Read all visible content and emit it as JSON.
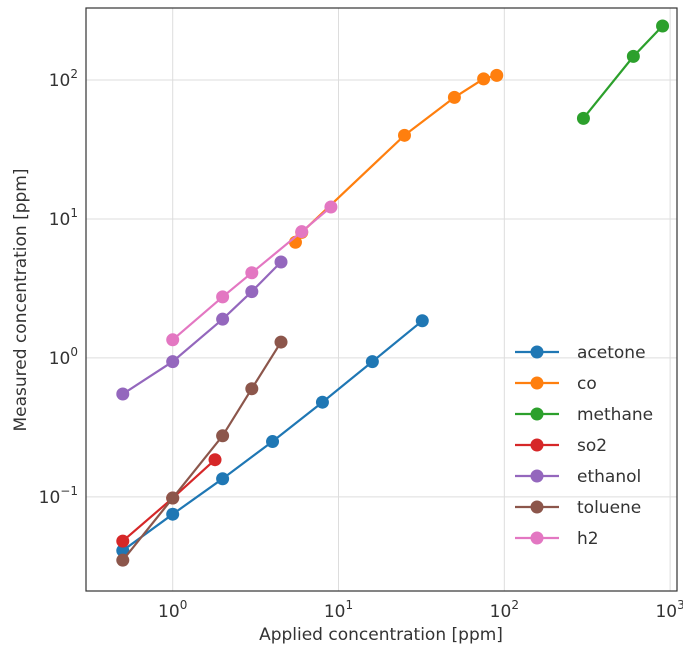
{
  "chart_data": {
    "type": "line",
    "title": "",
    "xlabel": "Applied concentration [ppm]",
    "ylabel": "Measured concentration [ppm]",
    "xscale": "log",
    "yscale": "log",
    "xlim": [
      0.3,
      1100
    ],
    "ylim": [
      0.021,
      330
    ],
    "grid": true,
    "legend_position": "lower-right",
    "x_ticks": [
      {
        "value": 1,
        "label": "10^0"
      },
      {
        "value": 10,
        "label": "10^1"
      },
      {
        "value": 100,
        "label": "10^2"
      },
      {
        "value": 1000,
        "label": "10^3"
      }
    ],
    "y_ticks": [
      {
        "value": 0.1,
        "label": "10^−1"
      },
      {
        "value": 1,
        "label": "10^0"
      },
      {
        "value": 10,
        "label": "10^1"
      },
      {
        "value": 100,
        "label": "10^2"
      }
    ],
    "series": [
      {
        "name": "acetone",
        "color": "#1f77b4",
        "x": [
          0.5,
          1,
          2,
          4,
          8,
          16,
          32
        ],
        "y": [
          0.041,
          0.075,
          0.135,
          0.25,
          0.48,
          0.94,
          1.85
        ]
      },
      {
        "name": "co",
        "color": "#ff7f0e",
        "x": [
          5.5,
          6,
          25,
          50,
          75,
          90
        ],
        "y": [
          6.8,
          8.0,
          40,
          75,
          102,
          108
        ]
      },
      {
        "name": "methane",
        "color": "#2ca02c",
        "x": [
          300,
          600,
          900
        ],
        "y": [
          53,
          148,
          245
        ]
      },
      {
        "name": "so2",
        "color": "#d62728",
        "x": [
          0.5,
          1,
          1.8
        ],
        "y": [
          0.048,
          0.098,
          0.185
        ]
      },
      {
        "name": "ethanol",
        "color": "#9467bd",
        "x": [
          0.5,
          1,
          2,
          3,
          4.5
        ],
        "y": [
          0.55,
          0.94,
          1.9,
          3.0,
          4.9
        ]
      },
      {
        "name": "toluene",
        "color": "#8c564b",
        "x": [
          0.5,
          1,
          2,
          3,
          4.5
        ],
        "y": [
          0.035,
          0.098,
          0.275,
          0.6,
          1.3
        ]
      },
      {
        "name": "h2",
        "color": "#e377c2",
        "x": [
          1,
          2,
          3,
          6,
          9
        ],
        "y": [
          1.35,
          2.75,
          4.1,
          8.1,
          12.2
        ]
      }
    ]
  }
}
